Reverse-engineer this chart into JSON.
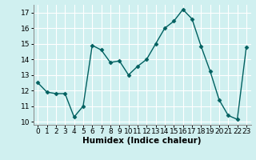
{
  "x": [
    0,
    1,
    2,
    3,
    4,
    5,
    6,
    7,
    8,
    9,
    10,
    11,
    12,
    13,
    14,
    15,
    16,
    17,
    18,
    19,
    20,
    21,
    22,
    23
  ],
  "y": [
    12.5,
    11.9,
    11.8,
    11.8,
    10.3,
    11.0,
    14.9,
    14.6,
    13.8,
    13.9,
    13.0,
    13.55,
    14.0,
    15.0,
    16.0,
    16.45,
    17.2,
    16.6,
    14.85,
    13.25,
    11.4,
    10.4,
    10.15,
    14.8
  ],
  "line_color": "#006060",
  "marker": "D",
  "marker_size": 2.5,
  "bg_color": "#d0f0f0",
  "grid_color": "#ffffff",
  "xlabel": "Humidex (Indice chaleur)",
  "xlabel_fontsize": 7.5,
  "ylabel_ticks": [
    10,
    11,
    12,
    13,
    14,
    15,
    16,
    17
  ],
  "xlim": [
    -0.5,
    23.5
  ],
  "ylim": [
    9.8,
    17.5
  ],
  "xtick_labels": [
    "0",
    "1",
    "2",
    "3",
    "4",
    "5",
    "6",
    "7",
    "8",
    "9",
    "10",
    "11",
    "12",
    "13",
    "14",
    "15",
    "16",
    "17",
    "18",
    "19",
    "20",
    "21",
    "22",
    "23"
  ],
  "tick_fontsize": 6.5,
  "line_width": 1.0
}
